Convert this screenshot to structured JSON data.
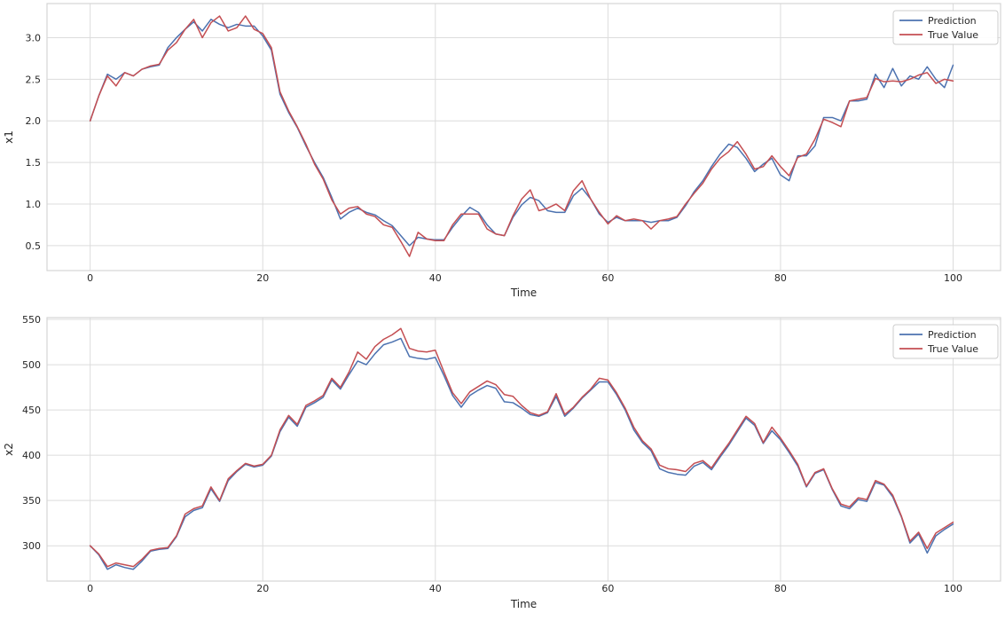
{
  "figure": {
    "background": "#ffffff"
  },
  "style": {
    "grid_color": "#dcdcdc",
    "spine_color": "#d5d5d5",
    "text_color": "#262626",
    "legend_border": "#cccccc",
    "legend_fill": "rgba(255,255,255,0.9)",
    "line_width": 1.5
  },
  "chart_data": [
    {
      "type": "line",
      "title": "",
      "xlabel": "Time",
      "ylabel": "x1",
      "grid": true,
      "legend_position": "upper right",
      "xlim": [
        -5,
        105.5
      ],
      "ylim": [
        0.2,
        3.41
      ],
      "xticks": [
        0,
        20,
        40,
        60,
        80,
        100
      ],
      "xtick_labels": [
        "0",
        "20",
        "40",
        "60",
        "80",
        "100"
      ],
      "yticks": [
        0.5,
        1.0,
        1.5,
        2.0,
        2.5,
        3.0
      ],
      "ytick_labels": [
        "0.5",
        "1.0",
        "1.5",
        "2.0",
        "2.5",
        "3.0"
      ],
      "x_start": 0,
      "x_step": 1,
      "series": [
        {
          "name": "Prediction",
          "color": "#4C72B0",
          "values": [
            2.0,
            2.3,
            2.56,
            2.5,
            2.58,
            2.54,
            2.62,
            2.65,
            2.67,
            2.88,
            3.0,
            3.1,
            3.19,
            3.08,
            3.22,
            3.16,
            3.12,
            3.16,
            3.14,
            3.14,
            3.02,
            2.85,
            2.32,
            2.1,
            1.92,
            1.7,
            1.5,
            1.32,
            1.08,
            0.82,
            0.9,
            0.95,
            0.9,
            0.87,
            0.8,
            0.74,
            0.62,
            0.5,
            0.6,
            0.58,
            0.57,
            0.57,
            0.72,
            0.85,
            0.96,
            0.9,
            0.75,
            0.64,
            0.62,
            0.84,
            0.99,
            1.08,
            1.04,
            0.92,
            0.9,
            0.9,
            1.1,
            1.19,
            1.06,
            0.88,
            0.78,
            0.84,
            0.8,
            0.8,
            0.8,
            0.78,
            0.8,
            0.8,
            0.84,
            0.98,
            1.15,
            1.28,
            1.45,
            1.6,
            1.72,
            1.68,
            1.55,
            1.39,
            1.48,
            1.55,
            1.35,
            1.28,
            1.58,
            1.58,
            1.7,
            2.04,
            2.04,
            2.0,
            2.24,
            2.24,
            2.26,
            2.56,
            2.4,
            2.63,
            2.42,
            2.54,
            2.5,
            2.65,
            2.5,
            2.4,
            2.67
          ]
        },
        {
          "name": "True Value",
          "color": "#C44E52",
          "values": [
            2.0,
            2.3,
            2.54,
            2.42,
            2.58,
            2.54,
            2.62,
            2.66,
            2.68,
            2.85,
            2.94,
            3.1,
            3.22,
            3.0,
            3.18,
            3.26,
            3.08,
            3.12,
            3.26,
            3.1,
            3.05,
            2.88,
            2.35,
            2.12,
            1.93,
            1.72,
            1.48,
            1.3,
            1.05,
            0.88,
            0.95,
            0.97,
            0.88,
            0.85,
            0.75,
            0.72,
            0.55,
            0.37,
            0.66,
            0.58,
            0.56,
            0.56,
            0.75,
            0.88,
            0.88,
            0.88,
            0.7,
            0.64,
            0.62,
            0.86,
            1.06,
            1.17,
            0.92,
            0.95,
            1.0,
            0.92,
            1.16,
            1.28,
            1.06,
            0.9,
            0.76,
            0.86,
            0.8,
            0.82,
            0.8,
            0.7,
            0.8,
            0.82,
            0.85,
            1.0,
            1.13,
            1.25,
            1.42,
            1.55,
            1.63,
            1.75,
            1.6,
            1.42,
            1.45,
            1.58,
            1.45,
            1.34,
            1.56,
            1.6,
            1.78,
            2.02,
            1.98,
            1.93,
            2.24,
            2.26,
            2.28,
            2.51,
            2.47,
            2.48,
            2.47,
            2.5,
            2.55,
            2.58,
            2.45,
            2.5,
            2.48
          ]
        }
      ]
    },
    {
      "type": "line",
      "title": "",
      "xlabel": "Time",
      "ylabel": "x2",
      "grid": true,
      "legend_position": "upper right",
      "xlim": [
        -5,
        105.5
      ],
      "ylim": [
        261,
        552
      ],
      "xticks": [
        0,
        20,
        40,
        60,
        80,
        100
      ],
      "xtick_labels": [
        "0",
        "20",
        "40",
        "60",
        "80",
        "100"
      ],
      "yticks": [
        300,
        350,
        400,
        450,
        500,
        550
      ],
      "ytick_labels": [
        "300",
        "350",
        "400",
        "450",
        "500",
        "550"
      ],
      "x_start": 0,
      "x_step": 1,
      "series": [
        {
          "name": "Prediction",
          "color": "#4C72B0",
          "values": [
            300,
            290,
            274,
            279,
            276,
            274,
            283,
            294,
            296,
            297,
            310,
            332,
            339,
            342,
            363,
            349,
            372,
            382,
            390,
            387,
            389,
            399,
            426,
            442,
            432,
            453,
            458,
            464,
            483,
            473,
            489,
            504,
            500,
            512,
            522,
            525,
            529,
            509,
            507,
            506,
            508,
            488,
            466,
            453,
            466,
            472,
            477,
            474,
            459,
            458,
            452,
            445,
            443,
            447,
            465,
            443,
            452,
            463,
            472,
            481,
            481,
            467,
            450,
            428,
            414,
            405,
            385,
            381,
            379,
            378,
            388,
            392,
            384,
            398,
            411,
            426,
            441,
            433,
            413,
            427,
            417,
            403,
            388,
            365,
            380,
            384,
            362,
            344,
            341,
            351,
            349,
            370,
            367,
            354,
            332,
            303,
            313,
            292,
            311,
            318,
            324
          ]
        },
        {
          "name": "True Value",
          "color": "#C44E52",
          "values": [
            300,
            291,
            277,
            281,
            279,
            277,
            285,
            295,
            297,
            298,
            311,
            335,
            341,
            344,
            365,
            350,
            374,
            383,
            391,
            388,
            390,
            400,
            428,
            444,
            434,
            455,
            460,
            466,
            485,
            475,
            492,
            514,
            506,
            520,
            528,
            533,
            540,
            518,
            515,
            514,
            516,
            492,
            469,
            457,
            470,
            476,
            482,
            478,
            467,
            465,
            455,
            447,
            444,
            448,
            468,
            445,
            453,
            464,
            473,
            485,
            483,
            469,
            452,
            431,
            416,
            407,
            389,
            385,
            384,
            382,
            391,
            394,
            386,
            400,
            413,
            428,
            443,
            435,
            414,
            431,
            419,
            405,
            390,
            366,
            381,
            385,
            363,
            346,
            343,
            353,
            351,
            372,
            368,
            356,
            333,
            305,
            315,
            297,
            314,
            320,
            326
          ]
        }
      ]
    }
  ]
}
